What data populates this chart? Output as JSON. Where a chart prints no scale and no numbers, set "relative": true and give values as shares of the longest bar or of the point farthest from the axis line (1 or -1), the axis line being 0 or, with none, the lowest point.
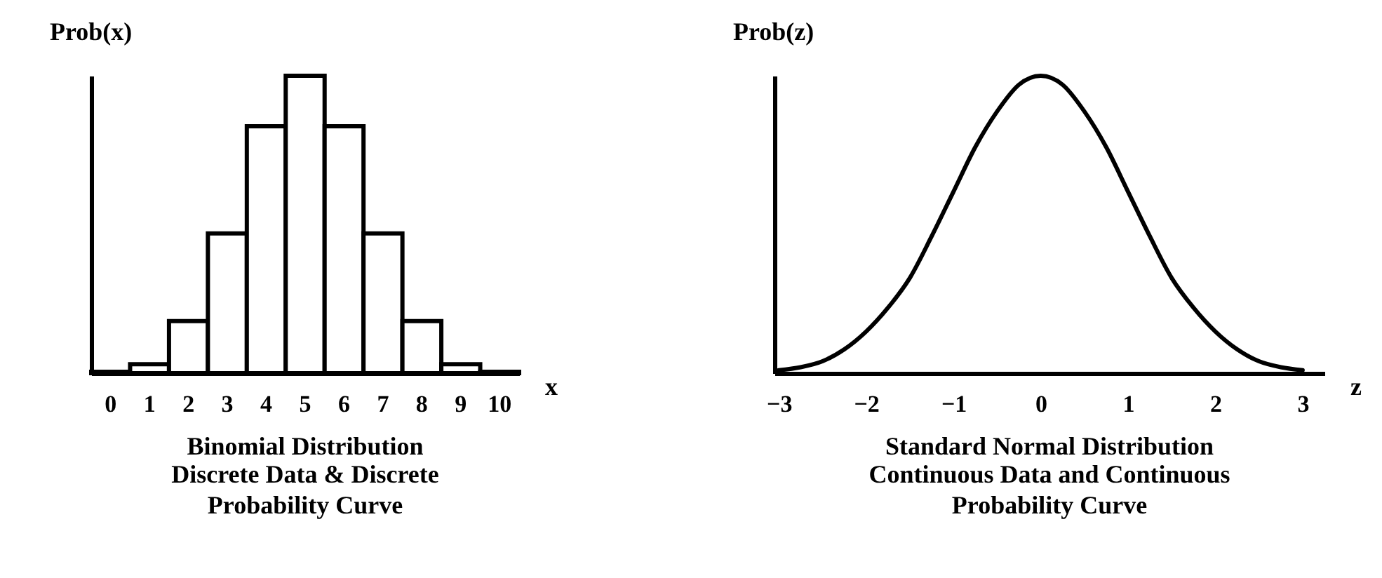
{
  "chart_data": [
    {
      "type": "bar",
      "title": "Binomial Distribution",
      "subtitle": "Discrete Data & Discrete Probability Curve",
      "xlabel": "x",
      "ylabel": "Prob(x)",
      "categories": [
        "0",
        "1",
        "2",
        "3",
        "4",
        "5",
        "6",
        "7",
        "8",
        "9",
        "10"
      ],
      "values": [
        0.005,
        0.03,
        0.175,
        0.47,
        0.83,
        1,
        0.83,
        0.47,
        0.175,
        0.03,
        0.005
      ],
      "color": "#ffffff",
      "relative": true
    },
    {
      "type": "line",
      "title": "Standard Normal Distribution",
      "subtitle": "Continuous Data and Continuous Probability Curve",
      "xlabel": "z",
      "ylabel": "Prob(z)",
      "x": [
        -3,
        -2.75,
        -2.5,
        -2.25,
        -2,
        -1.75,
        -1.5,
        -1.25,
        -1,
        -0.75,
        -0.5,
        -0.25,
        0,
        0.25,
        0.5,
        0.75,
        1,
        1.25,
        1.5,
        1.75,
        2,
        2.25,
        2.5,
        2.75,
        3
      ],
      "values": [
        0.01,
        0.02,
        0.04,
        0.08,
        0.14,
        0.22,
        0.32,
        0.46,
        0.61,
        0.76,
        0.88,
        0.97,
        1,
        0.97,
        0.88,
        0.76,
        0.61,
        0.46,
        0.32,
        0.22,
        0.14,
        0.08,
        0.04,
        0.02,
        0.01
      ],
      "color": "#000000",
      "xlim": [
        -3.05,
        3.25
      ],
      "xticks": [
        -3,
        -2,
        -1,
        0,
        1,
        2,
        3
      ],
      "relative": true
    }
  ]
}
